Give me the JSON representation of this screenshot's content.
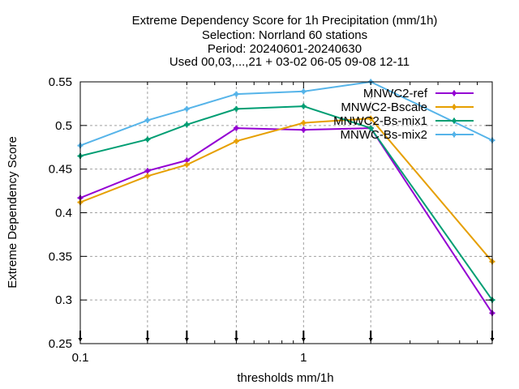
{
  "chart_data": {
    "type": "line",
    "title_lines": [
      "Extreme Dependency Score  for 1h Precipitation (mm/1h)",
      "Selection: Norrland     60 stations",
      "Period: 20240601-20240630",
      "Used 00,03,...,21 + 03-02 06-05 09-08 12-11"
    ],
    "xlabel": "thresholds mm/1h",
    "ylabel": "Extreme Dependency Score",
    "xscale": "log",
    "xlim": [
      0.1,
      7
    ],
    "ylim": [
      0.25,
      0.55
    ],
    "x_ticks": [
      {
        "value": 0.1,
        "label": "0.1"
      },
      {
        "value": 1,
        "label": "1"
      }
    ],
    "y_ticks": [
      {
        "value": 0.25,
        "label": "0.25"
      },
      {
        "value": 0.3,
        "label": "0.3"
      },
      {
        "value": 0.35,
        "label": "0.35"
      },
      {
        "value": 0.4,
        "label": "0.4"
      },
      {
        "value": 0.45,
        "label": "0.45"
      },
      {
        "value": 0.5,
        "label": "0.5"
      },
      {
        "value": 0.55,
        "label": "0.55"
      }
    ],
    "x": [
      0.1,
      0.2,
      0.3,
      0.5,
      1,
      2,
      7
    ],
    "grid": "dashed gray at each threshold and y tick",
    "legend_position": "top-right",
    "series": [
      {
        "name": "MNWC2-ref",
        "color": "#9400d3",
        "values": [
          0.417,
          0.448,
          0.46,
          0.497,
          0.495,
          0.497,
          0.285
        ]
      },
      {
        "name": "MNWC2-Bscale",
        "color": "#e69f00",
        "values": [
          0.412,
          0.442,
          0.455,
          0.482,
          0.503,
          0.508,
          0.344
        ]
      },
      {
        "name": "MNWC2-Bs-mix1",
        "color": "#009e73",
        "values": [
          0.465,
          0.484,
          0.501,
          0.519,
          0.522,
          0.497,
          0.3
        ]
      },
      {
        "name": "MNWC-Bs-mix2",
        "color": "#56b4e9",
        "values": [
          0.477,
          0.506,
          0.519,
          0.536,
          0.539,
          0.55,
          0.483
        ]
      }
    ]
  }
}
